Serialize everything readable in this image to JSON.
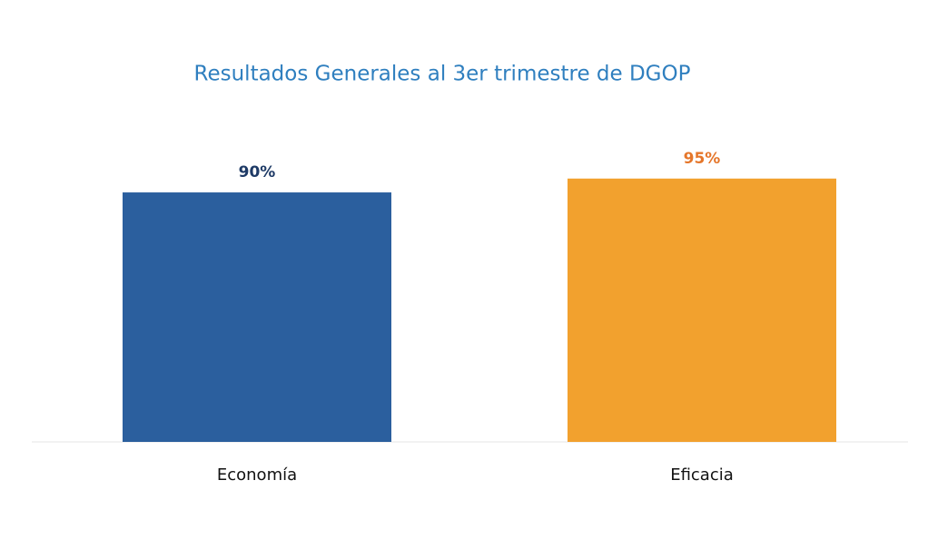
{
  "chart_data": {
    "type": "bar",
    "title": "Resultados Generales al 3er trimestre de DGOP",
    "categories": [
      "Economía",
      "Eficacia"
    ],
    "values": [
      90,
      95
    ],
    "value_labels": [
      "90%",
      "95%"
    ],
    "colors": [
      "#2b5f9e",
      "#f2a12e"
    ],
    "value_label_colors": [
      "#1e3a66",
      "#e5762a"
    ],
    "title_color": "#2f7fbf"
  }
}
